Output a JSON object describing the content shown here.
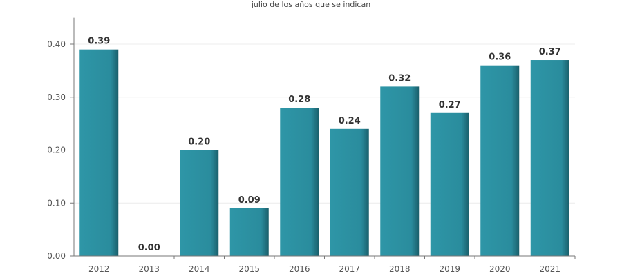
{
  "chart_data": {
    "type": "bar",
    "title": "julio de los años que se indican",
    "categories": [
      "2012",
      "2013",
      "2014",
      "2015",
      "2016",
      "2017",
      "2018",
      "2019",
      "2020",
      "2021"
    ],
    "values": [
      0.39,
      0.0,
      0.2,
      0.09,
      0.28,
      0.24,
      0.32,
      0.27,
      0.36,
      0.37
    ],
    "data_labels": [
      "0.39",
      "0.00",
      "0.20",
      "0.09",
      "0.28",
      "0.24",
      "0.32",
      "0.27",
      "0.36",
      "0.37"
    ],
    "yticks": [
      "0.00",
      "0.10",
      "0.20",
      "0.30",
      "0.40"
    ],
    "ylim": [
      0,
      0.45
    ],
    "grid": true,
    "colors": {
      "bar": "#2b90a1",
      "bar_edge": "#1a5f6b"
    }
  }
}
